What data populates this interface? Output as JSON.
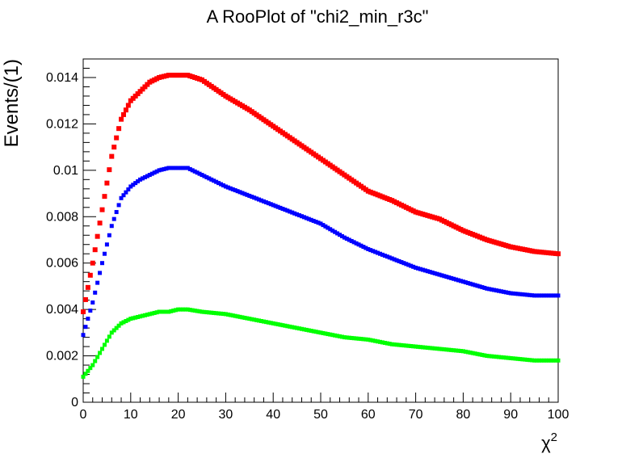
{
  "chart_data": {
    "type": "scatter",
    "title": "A RooPlot of \"chi2_min_r3c\"",
    "xlabel": "χ",
    "xlabel_superscript": "2",
    "ylabel": "Events/(1)",
    "xlim": [
      0,
      100
    ],
    "ylim": [
      0,
      0.0148
    ],
    "grid": false,
    "x_ticks": [
      "0",
      "10",
      "20",
      "30",
      "40",
      "50",
      "60",
      "70",
      "80",
      "90",
      "100"
    ],
    "y_ticks": [
      "0",
      "0.002",
      "0.004",
      "0.006",
      "0.008",
      "0.01",
      "0.012",
      "0.014"
    ],
    "x_tick_values": [
      0,
      10,
      20,
      30,
      40,
      50,
      60,
      70,
      80,
      90,
      100
    ],
    "y_tick_values": [
      0,
      0.002,
      0.004,
      0.006,
      0.008,
      0.01,
      0.012,
      0.014
    ],
    "x": [
      0,
      2,
      4,
      6,
      8,
      10,
      12,
      14,
      16,
      18,
      20,
      22,
      25,
      30,
      35,
      40,
      45,
      50,
      55,
      60,
      65,
      70,
      75,
      80,
      85,
      90,
      95,
      100
    ],
    "series": [
      {
        "color": "#ff0000",
        "values": [
          0.0039,
          0.006,
          0.0083,
          0.0106,
          0.0122,
          0.013,
          0.0134,
          0.0138,
          0.014,
          0.0141,
          0.0141,
          0.0141,
          0.0139,
          0.0132,
          0.0126,
          0.0119,
          0.0112,
          0.0105,
          0.0098,
          0.0091,
          0.0087,
          0.0082,
          0.0079,
          0.0074,
          0.007,
          0.0067,
          0.0065,
          0.0064
        ]
      },
      {
        "color": "#0000ff",
        "values": [
          0.0029,
          0.0043,
          0.006,
          0.0076,
          0.0088,
          0.0093,
          0.0096,
          0.0098,
          0.01,
          0.0101,
          0.0101,
          0.0101,
          0.0098,
          0.0093,
          0.0089,
          0.0085,
          0.0081,
          0.0077,
          0.0071,
          0.0066,
          0.0062,
          0.0058,
          0.0055,
          0.0052,
          0.0049,
          0.0047,
          0.0046,
          0.0046
        ]
      },
      {
        "color": "#00ff00",
        "values": [
          0.0011,
          0.0016,
          0.0023,
          0.003,
          0.0034,
          0.0036,
          0.0037,
          0.0038,
          0.0039,
          0.0039,
          0.004,
          0.004,
          0.0039,
          0.0038,
          0.0036,
          0.0034,
          0.0032,
          0.003,
          0.0028,
          0.0027,
          0.0025,
          0.0024,
          0.0023,
          0.0022,
          0.002,
          0.0019,
          0.0018,
          0.0018
        ]
      }
    ]
  }
}
